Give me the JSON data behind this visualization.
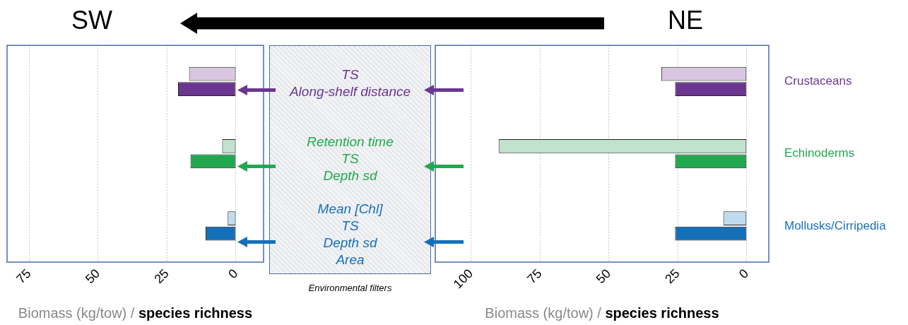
{
  "chart_data": [
    {
      "type": "bar",
      "orientation": "horizontal",
      "title": "SW",
      "xlabel": "Biomass (kg/tow) / species richness",
      "categories": [
        null,
        null,
        null
      ],
      "series": [
        {
          "colors": [
            "#d9c6e0",
            "#c1e2cc",
            "#c0dbef"
          ],
          "values": [
            17,
            5,
            3
          ]
        },
        {
          "colors": [
            "#6b3590",
            "#22a84f",
            "#1570ba"
          ],
          "values": [
            21,
            16.5,
            11
          ]
        }
      ],
      "xlim": [
        83,
        -10
      ],
      "xticks": [
        75,
        50,
        25,
        0
      ],
      "grid": "x"
    },
    {
      "type": "other",
      "title": "Environmental filters",
      "annotations": [
        "TS\nAlong-shelf distance",
        "Retention time\nTS\nDepth sd",
        "Mean [Chl]\nTS\nDepth sd\nArea"
      ]
    },
    {
      "type": "bar",
      "orientation": "horizontal",
      "title": "NE",
      "xlabel": "Biomass (kg/tow) / species richness",
      "categories": [
        "Crustaceans",
        "Echinoderms",
        "Mollusks/Cirripedia"
      ],
      "series": [
        {
          "colors": [
            "#d9c6e0",
            "#c1e2cc",
            "#c0dbef"
          ],
          "values": [
            31,
            90,
            8.5
          ]
        },
        {
          "colors": [
            "#6b3590",
            "#22a84f",
            "#1570ba"
          ],
          "values": [
            26,
            26,
            26
          ]
        }
      ],
      "xlim": [
        113,
        -8
      ],
      "xticks": [
        100,
        75,
        50,
        25,
        0
      ],
      "grid": "x"
    }
  ]
}
